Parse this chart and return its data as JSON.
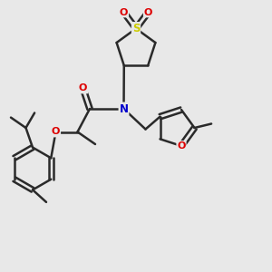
{
  "background_color": "#e8e8e8",
  "bond_color": "#2a2a2a",
  "atom_colors": {
    "S": "#cccc00",
    "O": "#dd0000",
    "N": "#0000cc",
    "C": "#2a2a2a"
  },
  "figsize": [
    3.0,
    3.0
  ],
  "dpi": 100,
  "xlim": [
    0,
    10
  ],
  "ylim": [
    0,
    10
  ]
}
